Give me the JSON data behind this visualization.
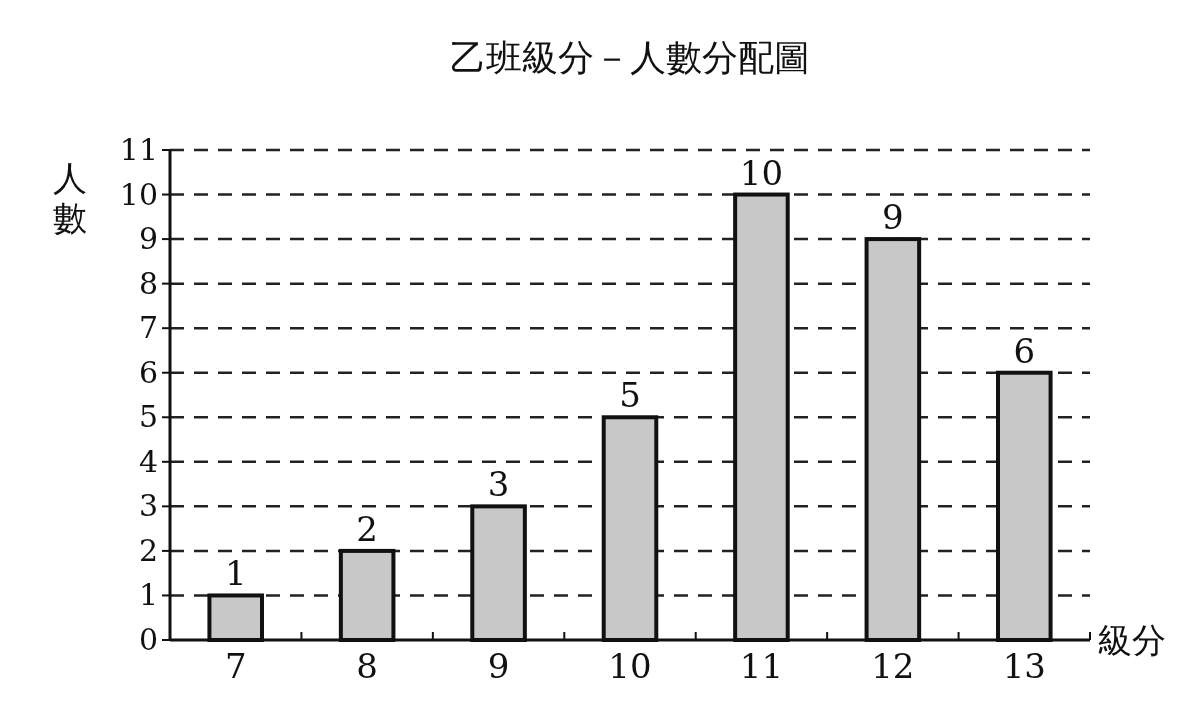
{
  "chart_data": {
    "type": "bar",
    "title": "乙班級分－人數分配圖",
    "xlabel": "級分",
    "ylabel": "人數",
    "categories": [
      "7",
      "8",
      "9",
      "10",
      "11",
      "12",
      "13"
    ],
    "values": [
      1,
      2,
      3,
      5,
      10,
      9,
      6
    ],
    "color": "#c8c8c8",
    "ylim": [
      0,
      11
    ],
    "yticks": [
      0,
      1,
      2,
      3,
      4,
      5,
      6,
      7,
      8,
      9,
      10,
      11
    ],
    "grid": "y",
    "data_labels": true
  }
}
